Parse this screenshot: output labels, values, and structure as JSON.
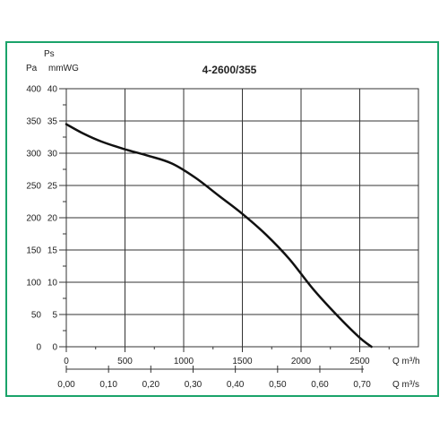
{
  "chart_data": {
    "type": "line",
    "title": "4-2600/355",
    "y_primary": {
      "unit_top": "Ps",
      "unit": "Pa",
      "ticks": [
        "0",
        "50",
        "100",
        "150",
        "200",
        "250",
        "300",
        "350",
        "400"
      ],
      "range": [
        0,
        400
      ]
    },
    "y_secondary": {
      "unit": "mmWG",
      "ticks": [
        "0",
        "5",
        "10",
        "15",
        "20",
        "25",
        "30",
        "35",
        "40"
      ],
      "range": [
        0,
        40
      ]
    },
    "x_primary": {
      "unit": "Q m³/h",
      "ticks": [
        "0",
        "500",
        "1000",
        "1500",
        "2000",
        "2500"
      ],
      "range": [
        0,
        3000
      ]
    },
    "x_secondary": {
      "unit": "Q m³/s",
      "ticks": [
        "0,00",
        "0,10",
        "0,20",
        "0,30",
        "0,40",
        "0,50",
        "0,60",
        "0,70"
      ],
      "range": [
        0,
        0.8333
      ]
    },
    "grid": true,
    "series": [
      {
        "x": [
          0,
          150,
          300,
          500,
          700,
          900,
          1100,
          1300,
          1500,
          1700,
          1900,
          2100,
          2300,
          2500,
          2600
        ],
        "y": [
          345,
          330,
          318,
          306,
          296,
          284,
          262,
          234,
          206,
          174,
          136,
          90,
          50,
          14,
          0
        ]
      }
    ],
    "line_color": "#111111",
    "grid_color": "#333333"
  }
}
